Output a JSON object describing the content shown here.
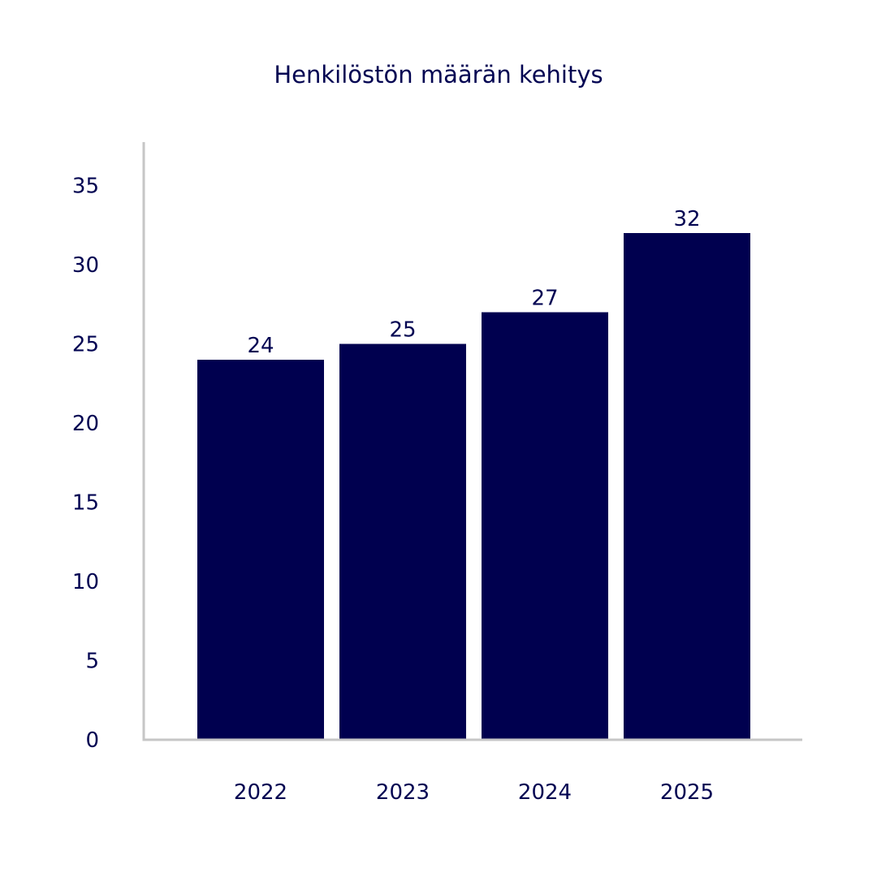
{
  "chart_data": {
    "type": "bar",
    "title": "Henkilöstön määrän kehitys",
    "xlabel": "",
    "ylabel": "",
    "categories": [
      "2022",
      "2023",
      "2024",
      "2025"
    ],
    "values": [
      24,
      25,
      27,
      32
    ],
    "data_labels": [
      "24",
      "25",
      "27",
      "32"
    ],
    "yticks": [
      0,
      5,
      10,
      15,
      20,
      25,
      30,
      35
    ],
    "ytick_labels": [
      "0",
      "5",
      "10",
      "15",
      "20",
      "25",
      "30",
      "35"
    ],
    "ylim": [
      0,
      35
    ],
    "grid": false,
    "legend": "none",
    "colors": {
      "bar": "#00004f",
      "text": "#020452",
      "axis": "#c6c6c6"
    }
  }
}
